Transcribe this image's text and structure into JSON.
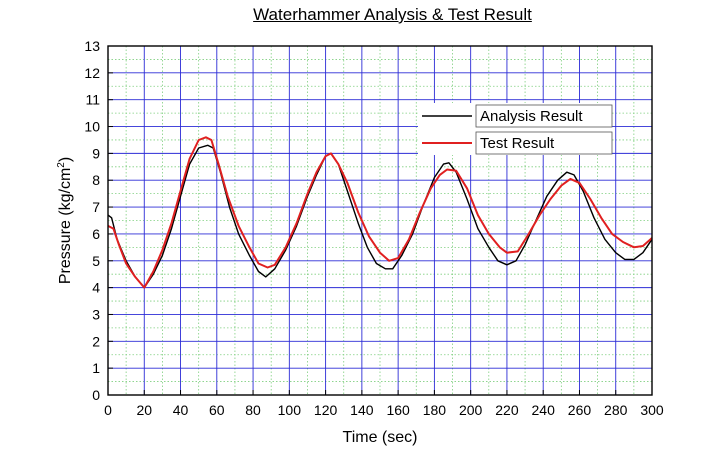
{
  "chart_data": {
    "type": "line",
    "title": "Waterhammer Analysis & Test Result",
    "xlabel": "Time (sec)",
    "ylabel": "Pressure (kg/cm",
    "ylabel_sup": "2",
    "ylabel_close": ")",
    "xlim": [
      0,
      300
    ],
    "ylim": [
      0,
      13
    ],
    "xticks": [
      0,
      20,
      40,
      60,
      80,
      100,
      120,
      140,
      160,
      180,
      200,
      220,
      240,
      260,
      280,
      300
    ],
    "yticks": [
      0,
      1,
      2,
      3,
      4,
      5,
      6,
      7,
      8,
      9,
      10,
      11,
      12,
      13
    ],
    "grid": true,
    "legend_position": "top-right",
    "series": [
      {
        "name": "Analysis Result",
        "color": "#000000",
        "points": [
          [
            0,
            6.7
          ],
          [
            2,
            6.6
          ],
          [
            5,
            5.8
          ],
          [
            10,
            5.0
          ],
          [
            15,
            4.4
          ],
          [
            20,
            4.0
          ],
          [
            25,
            4.5
          ],
          [
            30,
            5.2
          ],
          [
            35,
            6.2
          ],
          [
            40,
            7.4
          ],
          [
            45,
            8.6
          ],
          [
            50,
            9.2
          ],
          [
            55,
            9.3
          ],
          [
            58,
            9.2
          ],
          [
            62,
            8.3
          ],
          [
            67,
            7.0
          ],
          [
            72,
            6.0
          ],
          [
            78,
            5.2
          ],
          [
            83,
            4.6
          ],
          [
            87,
            4.4
          ],
          [
            92,
            4.7
          ],
          [
            98,
            5.4
          ],
          [
            104,
            6.3
          ],
          [
            110,
            7.4
          ],
          [
            115,
            8.2
          ],
          [
            120,
            8.9
          ],
          [
            123,
            9.0
          ],
          [
            127,
            8.6
          ],
          [
            132,
            7.6
          ],
          [
            138,
            6.4
          ],
          [
            143,
            5.5
          ],
          [
            148,
            4.9
          ],
          [
            153,
            4.7
          ],
          [
            157,
            4.7
          ],
          [
            162,
            5.2
          ],
          [
            168,
            6.0
          ],
          [
            174,
            7.1
          ],
          [
            180,
            8.1
          ],
          [
            185,
            8.6
          ],
          [
            188,
            8.65
          ],
          [
            192,
            8.3
          ],
          [
            198,
            7.3
          ],
          [
            204,
            6.2
          ],
          [
            210,
            5.5
          ],
          [
            215,
            5.0
          ],
          [
            220,
            4.85
          ],
          [
            225,
            5.0
          ],
          [
            230,
            5.6
          ],
          [
            236,
            6.5
          ],
          [
            242,
            7.4
          ],
          [
            248,
            8.0
          ],
          [
            253,
            8.3
          ],
          [
            257,
            8.2
          ],
          [
            262,
            7.6
          ],
          [
            268,
            6.6
          ],
          [
            274,
            5.8
          ],
          [
            280,
            5.3
          ],
          [
            285,
            5.05
          ],
          [
            290,
            5.05
          ],
          [
            295,
            5.3
          ],
          [
            300,
            5.8
          ]
        ]
      },
      {
        "name": "Test Result",
        "color": "#e02020",
        "points": [
          [
            0,
            6.3
          ],
          [
            3,
            6.2
          ],
          [
            6,
            5.6
          ],
          [
            10,
            4.9
          ],
          [
            15,
            4.4
          ],
          [
            20,
            4.0
          ],
          [
            25,
            4.6
          ],
          [
            30,
            5.4
          ],
          [
            35,
            6.4
          ],
          [
            40,
            7.6
          ],
          [
            45,
            8.8
          ],
          [
            50,
            9.5
          ],
          [
            54,
            9.6
          ],
          [
            57,
            9.5
          ],
          [
            61,
            8.6
          ],
          [
            66,
            7.4
          ],
          [
            72,
            6.3
          ],
          [
            78,
            5.5
          ],
          [
            83,
            4.9
          ],
          [
            88,
            4.75
          ],
          [
            92,
            4.85
          ],
          [
            98,
            5.5
          ],
          [
            104,
            6.4
          ],
          [
            110,
            7.5
          ],
          [
            115,
            8.3
          ],
          [
            120,
            8.9
          ],
          [
            123,
            9.0
          ],
          [
            127,
            8.6
          ],
          [
            132,
            7.9
          ],
          [
            138,
            6.8
          ],
          [
            144,
            5.9
          ],
          [
            150,
            5.3
          ],
          [
            155,
            5.0
          ],
          [
            160,
            5.1
          ],
          [
            166,
            5.8
          ],
          [
            172,
            6.8
          ],
          [
            178,
            7.7
          ],
          [
            183,
            8.2
          ],
          [
            187,
            8.4
          ],
          [
            192,
            8.35
          ],
          [
            198,
            7.7
          ],
          [
            204,
            6.7
          ],
          [
            210,
            6.0
          ],
          [
            216,
            5.5
          ],
          [
            220,
            5.3
          ],
          [
            226,
            5.35
          ],
          [
            232,
            6.0
          ],
          [
            238,
            6.7
          ],
          [
            244,
            7.3
          ],
          [
            250,
            7.8
          ],
          [
            255,
            8.05
          ],
          [
            260,
            7.9
          ],
          [
            266,
            7.3
          ],
          [
            272,
            6.6
          ],
          [
            278,
            6.0
          ],
          [
            284,
            5.7
          ],
          [
            290,
            5.5
          ],
          [
            295,
            5.55
          ],
          [
            300,
            5.85
          ]
        ]
      }
    ]
  }
}
